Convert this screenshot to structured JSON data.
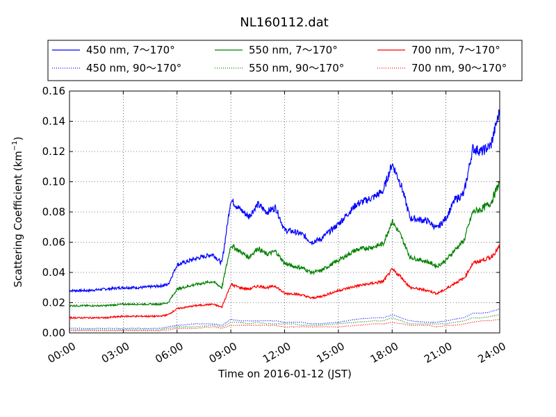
{
  "chart_data": {
    "type": "line",
    "title": "NL160112.dat",
    "xlabel": "Time on 2016-01-12 (JST)",
    "ylabel": "Scattering Coefficient (km",
    "ylabel_sup": "−1",
    "ylabel_close": ")",
    "xlim": [
      "00:00",
      "24:00"
    ],
    "ylim": [
      0.0,
      0.16
    ],
    "x_ticks": [
      "00:00",
      "03:00",
      "06:00",
      "09:00",
      "12:00",
      "15:00",
      "18:00",
      "21:00",
      "24:00"
    ],
    "y_ticks": [
      "0.00",
      "0.02",
      "0.04",
      "0.06",
      "0.08",
      "0.10",
      "0.12",
      "0.14",
      "0.16"
    ],
    "grid": true,
    "legend_position": "top (above plot), 3 columns",
    "x_unit": "hour",
    "x": [
      0,
      1,
      2,
      3,
      4,
      5,
      5.5,
      6,
      7,
      8,
      8.5,
      9,
      9.5,
      10,
      10.5,
      11,
      11.5,
      12,
      12.5,
      13,
      13.5,
      14,
      15,
      16,
      17,
      17.5,
      18,
      18.5,
      19,
      20,
      20.5,
      21,
      21.5,
      22,
      22.5,
      23,
      23.5,
      24
    ],
    "series": [
      {
        "name": "450 nm, 7～170°",
        "color": "#0000ff",
        "style": "solid",
        "values": [
          0.028,
          0.028,
          0.029,
          0.03,
          0.03,
          0.031,
          0.032,
          0.045,
          0.049,
          0.052,
          0.046,
          0.088,
          0.082,
          0.077,
          0.085,
          0.08,
          0.083,
          0.068,
          0.067,
          0.065,
          0.06,
          0.062,
          0.072,
          0.085,
          0.09,
          0.094,
          0.112,
          0.098,
          0.076,
          0.074,
          0.069,
          0.076,
          0.088,
          0.092,
          0.122,
          0.12,
          0.124,
          0.147
        ]
      },
      {
        "name": "550 nm, 7～170°",
        "color": "#008000",
        "style": "solid",
        "values": [
          0.018,
          0.018,
          0.018,
          0.019,
          0.019,
          0.019,
          0.02,
          0.029,
          0.032,
          0.034,
          0.03,
          0.058,
          0.054,
          0.05,
          0.056,
          0.052,
          0.054,
          0.046,
          0.044,
          0.043,
          0.04,
          0.041,
          0.048,
          0.055,
          0.057,
          0.059,
          0.074,
          0.064,
          0.05,
          0.047,
          0.044,
          0.048,
          0.055,
          0.061,
          0.08,
          0.082,
          0.086,
          0.1
        ]
      },
      {
        "name": "700 nm, 7～170°",
        "color": "#ff0000",
        "style": "solid",
        "values": [
          0.01,
          0.01,
          0.01,
          0.011,
          0.011,
          0.011,
          0.012,
          0.016,
          0.018,
          0.019,
          0.017,
          0.032,
          0.03,
          0.029,
          0.031,
          0.03,
          0.031,
          0.026,
          0.026,
          0.025,
          0.023,
          0.024,
          0.028,
          0.031,
          0.033,
          0.034,
          0.042,
          0.037,
          0.03,
          0.028,
          0.026,
          0.029,
          0.033,
          0.036,
          0.046,
          0.048,
          0.05,
          0.057
        ]
      },
      {
        "name": "450 nm, 90～170°",
        "color": "#0000ff",
        "style": "dotted",
        "values": [
          0.003,
          0.003,
          0.003,
          0.003,
          0.003,
          0.003,
          0.004,
          0.005,
          0.006,
          0.006,
          0.005,
          0.009,
          0.008,
          0.008,
          0.008,
          0.008,
          0.008,
          0.007,
          0.007,
          0.007,
          0.006,
          0.006,
          0.007,
          0.009,
          0.01,
          0.01,
          0.012,
          0.01,
          0.008,
          0.007,
          0.007,
          0.008,
          0.009,
          0.01,
          0.013,
          0.013,
          0.014,
          0.016
        ]
      },
      {
        "name": "550 nm, 90～170°",
        "color": "#008000",
        "style": "dotted",
        "values": [
          0.002,
          0.002,
          0.002,
          0.002,
          0.002,
          0.002,
          0.003,
          0.004,
          0.004,
          0.005,
          0.004,
          0.007,
          0.007,
          0.006,
          0.007,
          0.006,
          0.006,
          0.006,
          0.006,
          0.005,
          0.005,
          0.005,
          0.006,
          0.007,
          0.008,
          0.008,
          0.01,
          0.008,
          0.006,
          0.006,
          0.006,
          0.006,
          0.007,
          0.008,
          0.01,
          0.01,
          0.011,
          0.012
        ]
      },
      {
        "name": "700 nm, 90～170°",
        "color": "#ff0000",
        "style": "dotted",
        "values": [
          0.0015,
          0.0015,
          0.0015,
          0.0015,
          0.0015,
          0.0015,
          0.002,
          0.003,
          0.003,
          0.004,
          0.003,
          0.005,
          0.005,
          0.005,
          0.005,
          0.005,
          0.005,
          0.004,
          0.004,
          0.004,
          0.004,
          0.004,
          0.004,
          0.005,
          0.006,
          0.006,
          0.007,
          0.006,
          0.005,
          0.005,
          0.004,
          0.005,
          0.005,
          0.006,
          0.007,
          0.008,
          0.008,
          0.009
        ]
      }
    ]
  }
}
